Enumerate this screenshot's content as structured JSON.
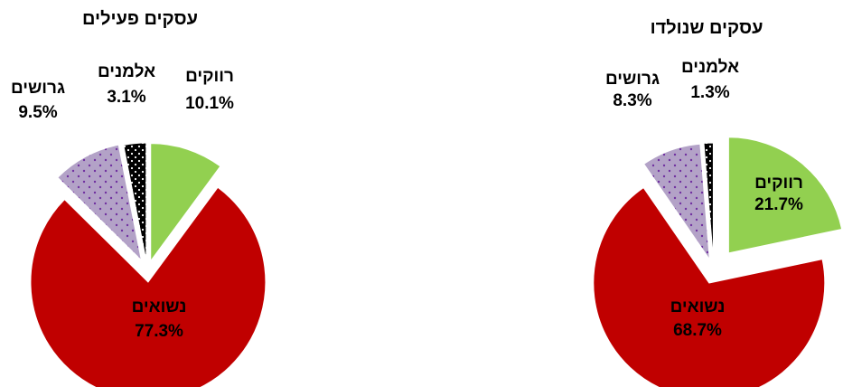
{
  "colors": {
    "smokers": "#92d050",
    "married": "#c00000",
    "divorced": "#b3a2c7",
    "divorced_dots": "#7030a0",
    "widowed": "#000000",
    "widowed_dots": "#ffffff"
  },
  "chart_data": [
    {
      "type": "pie",
      "title": "עסקים שנולדו",
      "slices": [
        {
          "name": "רווקים",
          "value": 21.7,
          "label": "21.7%",
          "key": "smokers"
        },
        {
          "name": "נשואים",
          "value": 68.7,
          "label": "68.7%",
          "key": "married"
        },
        {
          "name": "גרושים",
          "value": 8.3,
          "label": "8.3%",
          "key": "divorced"
        },
        {
          "name": "אלמנים",
          "value": 1.3,
          "label": "1.3%",
          "key": "widowed"
        }
      ]
    },
    {
      "type": "pie",
      "title": "עסקים פעילים",
      "slices": [
        {
          "name": "רווקים",
          "value": 10.1,
          "label": "10.1%",
          "key": "smokers"
        },
        {
          "name": "נשואים",
          "value": 77.3,
          "label": "77.3%",
          "key": "married"
        },
        {
          "name": "גרושים",
          "value": 9.5,
          "label": "9.5%",
          "key": "divorced"
        },
        {
          "name": "אלמנים",
          "value": 3.1,
          "label": "3.1%",
          "key": "widowed"
        }
      ]
    }
  ]
}
